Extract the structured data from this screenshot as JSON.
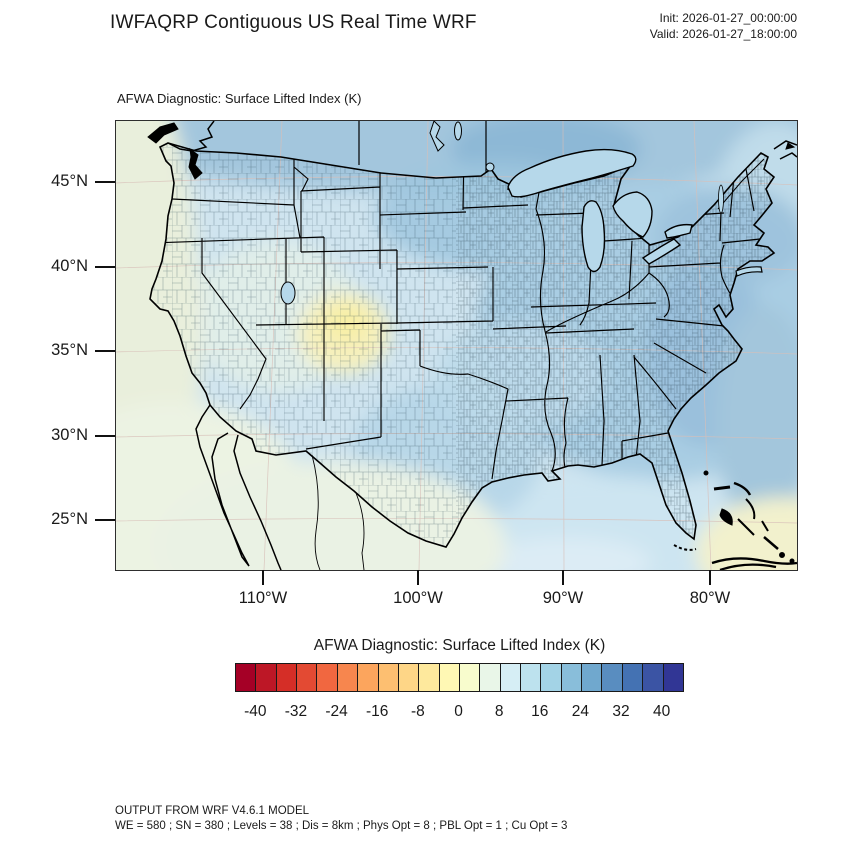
{
  "header": {
    "title": "IWFAQRP Contiguous US Real Time WRF",
    "init": "Init: 2026-01-27_00:00:00",
    "valid": "Valid: 2026-01-27_18:00:00"
  },
  "map": {
    "subtitle": "AFWA Diagnostic: Surface Lifted Index   (K)",
    "lat_ticks": [
      "45°N",
      "40°N",
      "35°N",
      "30°N",
      "25°N"
    ],
    "lon_ticks": [
      "110°W",
      "100°W",
      "90°W",
      "80°W"
    ]
  },
  "colorbar": {
    "title": "AFWA Diagnostic: Surface Lifted Index  (K)",
    "units": "K",
    "tick_labels": [
      "-40",
      "-32",
      "-24",
      "-16",
      "-8",
      "0",
      "8",
      "16",
      "24",
      "32",
      "40"
    ],
    "range_min": -44,
    "range_max": 44,
    "step": 4,
    "colors": [
      "#a50026",
      "#bd1726",
      "#d52e27",
      "#e34a33",
      "#f16740",
      "#f7864e",
      "#fca55d",
      "#fdbf71",
      "#fed687",
      "#fee99d",
      "#fff8b4",
      "#f8fccd",
      "#e9f6e8",
      "#d6eef5",
      "#bde2ee",
      "#a3d3e6",
      "#89beda",
      "#70a8ce",
      "#598dc0",
      "#4472b3",
      "#3b54a4",
      "#313695"
    ]
  },
  "footer": {
    "line1": "OUTPUT FROM WRF V4.6.1 MODEL",
    "line2": "WE = 580 ; SN = 380 ; Levels = 38 ; Dis = 8km ; Phys Opt = 8 ; PBL Opt = 1 ; Cu Opt = 3"
  },
  "palette": {
    "ocean_base": "#cfe4ef",
    "canada_mid": "#a3c6dd",
    "canada_dark": "#8db8d6",
    "nplains": "#9ec6de",
    "east_mid": "#a9cde3",
    "appalachia": "#98bfda",
    "northeast": "#9cc2dc",
    "atlantic_band": "#a3c6dc",
    "atlantic_outer": "#c0dcea",
    "gulf": "#cde5f1",
    "gulf_pale": "#dcecf5",
    "se_corner_yellow": "#f2f1cd",
    "texas": "#b4d5e8",
    "plains_light": "#bcdaea",
    "basin_pale": "#e0eee9",
    "west_coast_pale": "#e9efdc",
    "sw_ocean_pale": "#ecf3e3",
    "mexico_pale": "#eaf2e4",
    "rockies_yellow": "#f6f0bc",
    "rockies_yellow_core": "#f8efa4",
    "lake_water": "#b6d8ea",
    "graticule": "#d8bfb8"
  },
  "chart_data": {
    "type": "heatmap",
    "title": "AFWA Diagnostic: Surface Lifted Index (K)",
    "model_run": {
      "init": "2026-01-27_00:00:00",
      "valid": "2026-01-27_18:00:00"
    },
    "region": "Contiguous United States",
    "lat_ticks_deg_n": [
      45,
      40,
      35,
      30,
      25
    ],
    "lon_ticks_deg_w": [
      110,
      100,
      90,
      80
    ],
    "colorbar_ticks": [
      -40,
      -32,
      -24,
      -16,
      -8,
      0,
      8,
      16,
      24,
      32,
      40
    ],
    "colorbar_range": [
      -44,
      44
    ],
    "colorbar_step": 4,
    "legend_position": "bottom",
    "grid": "county and state boundaries over shaded field",
    "field_summary": [
      {
        "region": "Colorado / eastern Utah Rockies",
        "value_K": "-4 to +4 (pale yellow minimum)"
      },
      {
        "region": "Great Basin, Nevada & west-coast strip",
        "value_K": "4 to 8"
      },
      {
        "region": "Central Plains (KS/OK/TX)",
        "value_K": "8 to 16"
      },
      {
        "region": "Eastern US & Appalachians",
        "value_K": "16 to 24"
      },
      {
        "region": "Canada along northern edge",
        "value_K": "20 to 28 (darkest blue)"
      },
      {
        "region": "Atlantic coastal waters",
        "value_K": "16 to 24"
      },
      {
        "region": "Gulf of Mexico",
        "value_K": "8 to 12"
      },
      {
        "region": "Mexico / Pacific nearshore",
        "value_K": "4 to 8"
      },
      {
        "region": "Southeast corner near Bahamas",
        "value_K": "0 to 4 (pale yellow)"
      }
    ]
  }
}
